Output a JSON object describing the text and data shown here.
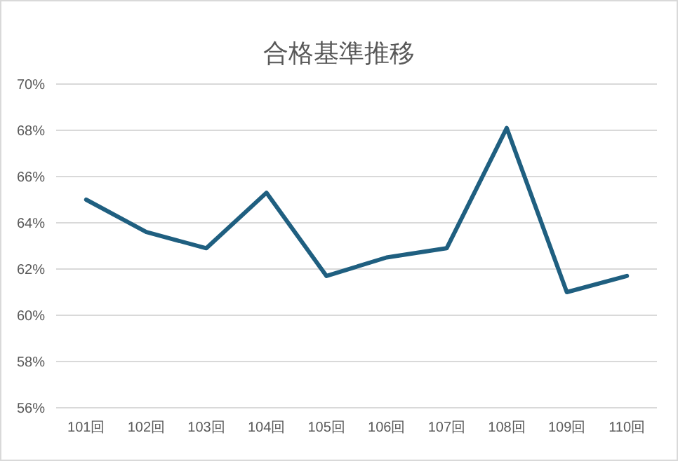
{
  "chart_data": {
    "type": "line",
    "title": "合格基準推移",
    "categories": [
      "101回",
      "102回",
      "103回",
      "104回",
      "105回",
      "106回",
      "107回",
      "108回",
      "109回",
      "110回"
    ],
    "series": [
      {
        "color": "#1f5f80",
        "values": [
          65.0,
          63.6,
          62.9,
          65.3,
          61.7,
          62.5,
          62.9,
          68.1,
          61.0,
          61.7
        ]
      }
    ],
    "ylim": [
      56,
      70
    ],
    "yticks": [
      {
        "value": 56,
        "label": "56%"
      },
      {
        "value": 58,
        "label": "58%"
      },
      {
        "value": 60,
        "label": "60%"
      },
      {
        "value": 62,
        "label": "62%"
      },
      {
        "value": 64,
        "label": "64%"
      },
      {
        "value": 66,
        "label": "66%"
      },
      {
        "value": 68,
        "label": "68%"
      },
      {
        "value": 70,
        "label": "70%"
      }
    ],
    "grid": "y",
    "marker": "none",
    "line_style": "solid"
  }
}
